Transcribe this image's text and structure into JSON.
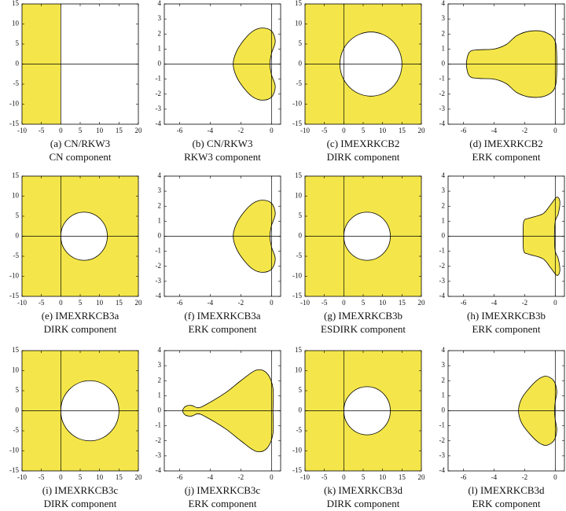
{
  "chart_data": [
    {
      "type": "halfplane",
      "caption": [
        "(a) CN/RKW3",
        "CN component"
      ],
      "color": "#f4e64a",
      "boundary_x": 0,
      "xlim": [
        -10,
        20
      ],
      "ylim": [
        -15,
        15
      ],
      "xticks": [
        -10,
        -5,
        0,
        5,
        10,
        15,
        20
      ],
      "yticks": [
        -15,
        -10,
        -5,
        0,
        5,
        10,
        15
      ]
    },
    {
      "type": "region",
      "caption": [
        "(b) CN/RKW3",
        "RKW3 component"
      ],
      "color": "#f4e64a",
      "x": [
        -2.5,
        -2.3,
        -1.8,
        -1.2,
        -0.6,
        0,
        0.25,
        0,
        -0.1,
        0,
        0.25,
        0,
        -0.6,
        -1.2,
        -1.8,
        -2.3
      ],
      "y": [
        0,
        0.8,
        1.6,
        2.2,
        2.4,
        2.2,
        1.5,
        0.7,
        0,
        -0.7,
        -1.5,
        -2.2,
        -2.4,
        -2.2,
        -1.6,
        -0.8
      ],
      "xlim": [
        -7,
        0.6
      ],
      "ylim": [
        -4,
        4
      ],
      "xticks": [
        -6,
        -4,
        -2,
        0
      ],
      "yticks": [
        -4,
        -3,
        -2,
        -1,
        0,
        1,
        2,
        3,
        4
      ]
    },
    {
      "type": "circle-exterior",
      "caption": [
        "(c) IMEXRKCB2",
        "DIRK component"
      ],
      "color": "#f4e64a",
      "center_x": 7,
      "center_y": 0,
      "radius": 8,
      "xlim": [
        -10,
        20
      ],
      "ylim": [
        -15,
        15
      ],
      "xticks": [
        -10,
        -5,
        0,
        5,
        10,
        15,
        20
      ],
      "yticks": [
        -15,
        -10,
        -5,
        0,
        5,
        10,
        15
      ]
    },
    {
      "type": "region",
      "caption": [
        "(d) IMEXRKCB2",
        "ERK component"
      ],
      "color": "#f4e64a",
      "x": [
        -5.8,
        -5.6,
        -5,
        -4,
        -3.2,
        -2.5,
        -1.6,
        -0.6,
        0,
        0.1,
        0,
        -0.6,
        -1.6,
        -2.5,
        -3.2,
        -4,
        -5,
        -5.6
      ],
      "y": [
        0,
        0.8,
        0.95,
        1,
        1.3,
        1.9,
        2.2,
        2.1,
        1.5,
        0,
        -1.5,
        -2.1,
        -2.2,
        -1.9,
        -1.3,
        -1,
        -0.95,
        -0.8
      ],
      "xlim": [
        -7,
        0.6
      ],
      "ylim": [
        -4,
        4
      ],
      "xticks": [
        -6,
        -4,
        -2,
        0
      ],
      "yticks": [
        -4,
        -3,
        -2,
        -1,
        0,
        1,
        2,
        3,
        4
      ]
    },
    {
      "type": "circle-exterior",
      "caption": [
        "(e) IMEXRKCB3a",
        "DIRK component"
      ],
      "color": "#f4e64a",
      "center_x": 6,
      "center_y": 0,
      "radius": 6,
      "xlim": [
        -10,
        20
      ],
      "ylim": [
        -15,
        15
      ],
      "xticks": [
        -10,
        -5,
        0,
        5,
        10,
        15,
        20
      ],
      "yticks": [
        -15,
        -10,
        -5,
        0,
        5,
        10,
        15
      ]
    },
    {
      "type": "region",
      "caption": [
        "(f) IMEXRKCB3a",
        "ERK component"
      ],
      "color": "#f4e64a",
      "x": [
        -2.5,
        -2.3,
        -1.8,
        -1.2,
        -0.6,
        0,
        0.25,
        0,
        -0.1,
        0,
        0.25,
        0,
        -0.6,
        -1.2,
        -1.8,
        -2.3
      ],
      "y": [
        0,
        0.8,
        1.6,
        2.2,
        2.4,
        2.2,
        1.5,
        0.7,
        0,
        -0.7,
        -1.5,
        -2.2,
        -2.4,
        -2.2,
        -1.6,
        -0.8
      ],
      "xlim": [
        -7,
        0.6
      ],
      "ylim": [
        -4,
        4
      ],
      "xticks": [
        -6,
        -4,
        -2,
        0
      ],
      "yticks": [
        -4,
        -3,
        -2,
        -1,
        0,
        1,
        2,
        3,
        4
      ]
    },
    {
      "type": "circle-exterior",
      "caption": [
        "(g) IMEXRKCB3b",
        "ESDIRK component"
      ],
      "color": "#f4e64a",
      "center_x": 6,
      "center_y": 0,
      "radius": 6,
      "xlim": [
        -10,
        20
      ],
      "ylim": [
        -15,
        15
      ],
      "xticks": [
        -10,
        -5,
        0,
        5,
        10,
        15,
        20
      ],
      "yticks": [
        -15,
        -10,
        -5,
        0,
        5,
        10,
        15
      ]
    },
    {
      "type": "region",
      "caption": [
        "(h) IMEXRKCB3b",
        "ERK component"
      ],
      "color": "#f4e64a",
      "x": [
        -2.1,
        -2.05,
        -1.7,
        -0.8,
        -0.3,
        0.1,
        0.3,
        0.2,
        0,
        -0.05,
        0,
        0.2,
        0.3,
        0.1,
        -0.3,
        -0.8,
        -1.7,
        -2.05
      ],
      "y": [
        0,
        1,
        1.2,
        1.5,
        2.1,
        2.6,
        2.3,
        1.5,
        1,
        0,
        -1,
        -1.5,
        -2.3,
        -2.6,
        -2.1,
        -1.5,
        -1.2,
        -1
      ],
      "xlim": [
        -7,
        0.6
      ],
      "ylim": [
        -4,
        4
      ],
      "xticks": [
        -6,
        -4,
        -2,
        0
      ],
      "yticks": [
        -4,
        -3,
        -2,
        -1,
        0,
        1,
        2,
        3,
        4
      ]
    },
    {
      "type": "circle-exterior",
      "caption": [
        "(i) IMEXRKCB3c",
        "DIRK component"
      ],
      "color": "#f4e64a",
      "center_x": 7.5,
      "center_y": 0,
      "radius": 7.5,
      "xlim": [
        -10,
        20
      ],
      "ylim": [
        -15,
        15
      ],
      "xticks": [
        -10,
        -5,
        0,
        5,
        10,
        15,
        20
      ],
      "yticks": [
        -15,
        -10,
        -5,
        0,
        5,
        10,
        15
      ]
    },
    {
      "type": "region",
      "caption": [
        "(j) IMEXRKCB3c",
        "ERK component"
      ],
      "color": "#f4e64a",
      "x": [
        -5.8,
        -5.6,
        -5.2,
        -4.8,
        -4.3,
        -3,
        -2,
        -1,
        -0.3,
        0.1,
        0.1,
        0.1,
        -0.3,
        -1,
        -2,
        -3,
        -4.3,
        -4.8,
        -5.2,
        -5.6
      ],
      "y": [
        0,
        0.3,
        0.35,
        0.2,
        0.4,
        1.2,
        2,
        2.7,
        2.5,
        1.5,
        0,
        -1.5,
        -2.5,
        -2.7,
        -2,
        -1.2,
        -0.4,
        -0.2,
        -0.35,
        -0.3
      ],
      "xlim": [
        -7,
        0.6
      ],
      "ylim": [
        -4,
        4
      ],
      "xticks": [
        -6,
        -4,
        -2,
        0
      ],
      "yticks": [
        -4,
        -3,
        -2,
        -1,
        0,
        1,
        2,
        3,
        4
      ]
    },
    {
      "type": "circle-exterior",
      "caption": [
        "(k) IMEXRKCB3d",
        "DIRK component"
      ],
      "color": "#f4e64a",
      "center_x": 6,
      "center_y": 0,
      "radius": 6,
      "xlim": [
        -10,
        20
      ],
      "ylim": [
        -15,
        15
      ],
      "xticks": [
        -10,
        -5,
        0,
        5,
        10,
        15,
        20
      ],
      "yticks": [
        -15,
        -10,
        -5,
        0,
        5,
        10,
        15
      ]
    },
    {
      "type": "region",
      "caption": [
        "(l) IMEXRKCB3d",
        "ERK component"
      ],
      "color": "#f4e64a",
      "x": [
        -2.4,
        -2.2,
        -1.7,
        -1.1,
        -0.6,
        -0.1,
        0.1,
        0,
        -0.05,
        0,
        0.1,
        -0.1,
        -0.6,
        -1.1,
        -1.7,
        -2.2
      ],
      "y": [
        0,
        0.8,
        1.5,
        2.1,
        2.3,
        2,
        1.3,
        0.6,
        0,
        -0.6,
        -1.3,
        -2,
        -2.3,
        -2.1,
        -1.5,
        -0.8
      ],
      "xlim": [
        -7,
        0.6
      ],
      "ylim": [
        -4,
        4
      ],
      "xticks": [
        -6,
        -4,
        -2,
        0
      ],
      "yticks": [
        -4,
        -3,
        -2,
        -1,
        0,
        1,
        2,
        3,
        4
      ]
    }
  ]
}
